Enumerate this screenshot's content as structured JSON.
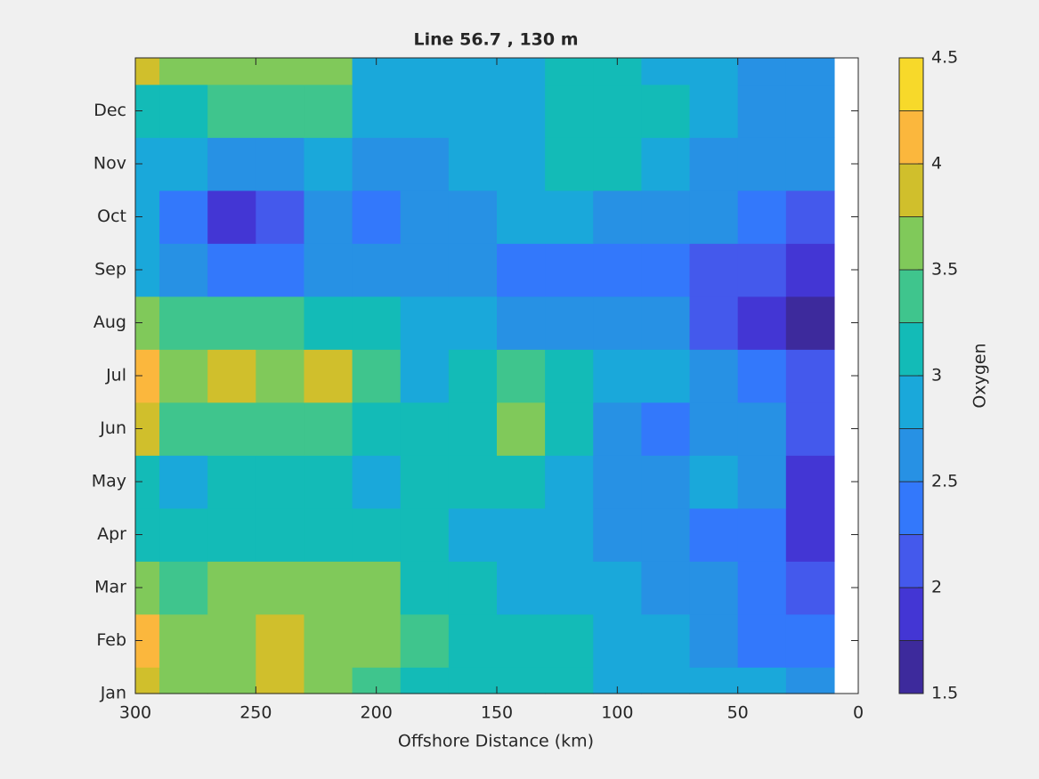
{
  "chart_data": {
    "type": "contourf",
    "title": "Line 56.7 , 130 m",
    "xlabel": "Offshore Distance (km)",
    "colorbar_label": "Oxygen",
    "xlim": [
      300,
      0
    ],
    "xticks": [
      300,
      250,
      200,
      150,
      100,
      50,
      0
    ],
    "ylim": [
      1,
      13
    ],
    "yticks": [
      {
        "value": 1,
        "label": "Jan"
      },
      {
        "value": 2,
        "label": "Feb"
      },
      {
        "value": 3,
        "label": "Mar"
      },
      {
        "value": 4,
        "label": "Apr"
      },
      {
        "value": 5,
        "label": "May"
      },
      {
        "value": 6,
        "label": "Jun"
      },
      {
        "value": 7,
        "label": "Jul"
      },
      {
        "value": 8,
        "label": "Aug"
      },
      {
        "value": 9,
        "label": "Sep"
      },
      {
        "value": 10,
        "label": "Oct"
      },
      {
        "value": 11,
        "label": "Nov"
      },
      {
        "value": 12,
        "label": "Dec"
      }
    ],
    "x": [
      300,
      280,
      260,
      240,
      220,
      200,
      180,
      160,
      140,
      120,
      100,
      80,
      60,
      40,
      20
    ],
    "y": [
      1,
      2,
      3,
      4,
      5,
      6,
      7,
      8,
      9,
      10,
      11,
      12,
      13
    ],
    "z": [
      [
        3.8,
        3.6,
        3.7,
        3.8,
        3.6,
        3.4,
        3.2,
        3.1,
        3.1,
        3.1,
        2.9,
        2.9,
        2.85,
        2.85,
        2.6
      ],
      [
        4.1,
        3.7,
        3.6,
        3.85,
        3.6,
        3.55,
        3.3,
        3.1,
        3.1,
        3.0,
        2.85,
        2.8,
        2.6,
        2.45,
        2.3
      ],
      [
        3.6,
        3.4,
        3.55,
        3.6,
        3.55,
        3.5,
        3.2,
        3.05,
        2.9,
        2.85,
        2.8,
        2.7,
        2.6,
        2.3,
        2.15
      ],
      [
        3.2,
        3.15,
        3.1,
        3.1,
        3.1,
        3.05,
        3.1,
        2.95,
        2.85,
        2.8,
        2.65,
        2.55,
        2.45,
        2.25,
        1.95
      ],
      [
        3.1,
        2.9,
        3.1,
        3.1,
        3.1,
        2.9,
        3.0,
        3.1,
        3.2,
        2.9,
        2.7,
        2.55,
        2.75,
        2.7,
        1.95
      ],
      [
        3.8,
        3.4,
        3.3,
        3.4,
        3.3,
        3.2,
        3.0,
        3.2,
        3.55,
        3.2,
        2.7,
        2.4,
        2.6,
        2.6,
        2.1
      ],
      [
        4.2,
        3.6,
        3.8,
        3.7,
        3.8,
        3.4,
        2.9,
        3.1,
        3.35,
        3.1,
        2.8,
        2.75,
        2.7,
        2.4,
        2.0
      ],
      [
        3.6,
        3.3,
        3.3,
        3.3,
        3.2,
        3.0,
        2.8,
        2.8,
        2.7,
        2.6,
        2.6,
        2.5,
        2.05,
        1.9,
        1.7
      ],
      [
        2.8,
        2.6,
        2.3,
        2.3,
        2.6,
        2.6,
        2.7,
        2.6,
        2.45,
        2.4,
        2.45,
        2.3,
        2.15,
        2.0,
        1.8
      ],
      [
        2.8,
        2.45,
        1.95,
        2.2,
        2.6,
        2.4,
        2.6,
        2.7,
        2.75,
        2.75,
        2.65,
        2.6,
        2.55,
        2.35,
        2.2
      ],
      [
        2.8,
        2.85,
        2.7,
        2.7,
        2.8,
        2.7,
        2.5,
        2.8,
        2.85,
        3.05,
        3.05,
        2.85,
        2.7,
        2.6,
        2.55
      ],
      [
        3.1,
        3.2,
        3.3,
        3.3,
        3.3,
        2.8,
        2.8,
        2.85,
        2.9,
        3.1,
        3.1,
        3.05,
        2.8,
        2.65,
        2.6
      ],
      [
        3.8,
        3.6,
        3.6,
        3.6,
        3.5,
        2.9,
        2.9,
        2.85,
        2.9,
        3.1,
        3.05,
        2.85,
        2.8,
        2.7,
        2.6
      ]
    ],
    "levels": [
      1.5,
      1.75,
      2,
      2.25,
      2.5,
      2.75,
      3,
      3.25,
      3.5,
      3.75,
      4,
      4.25,
      4.5
    ],
    "colors": [
      "#3d2a9c",
      "#4336d4",
      "#4459ec",
      "#3378fb",
      "#2791e4",
      "#1aa8da",
      "#13bbb7",
      "#3fc58d",
      "#80c95a",
      "#d0bf2c",
      "#fbb73d",
      "#f7d92a"
    ],
    "clim": [
      1.5,
      4.5
    ],
    "cticks": [
      1.5,
      2,
      2.5,
      3,
      3.5,
      4,
      4.5
    ]
  }
}
